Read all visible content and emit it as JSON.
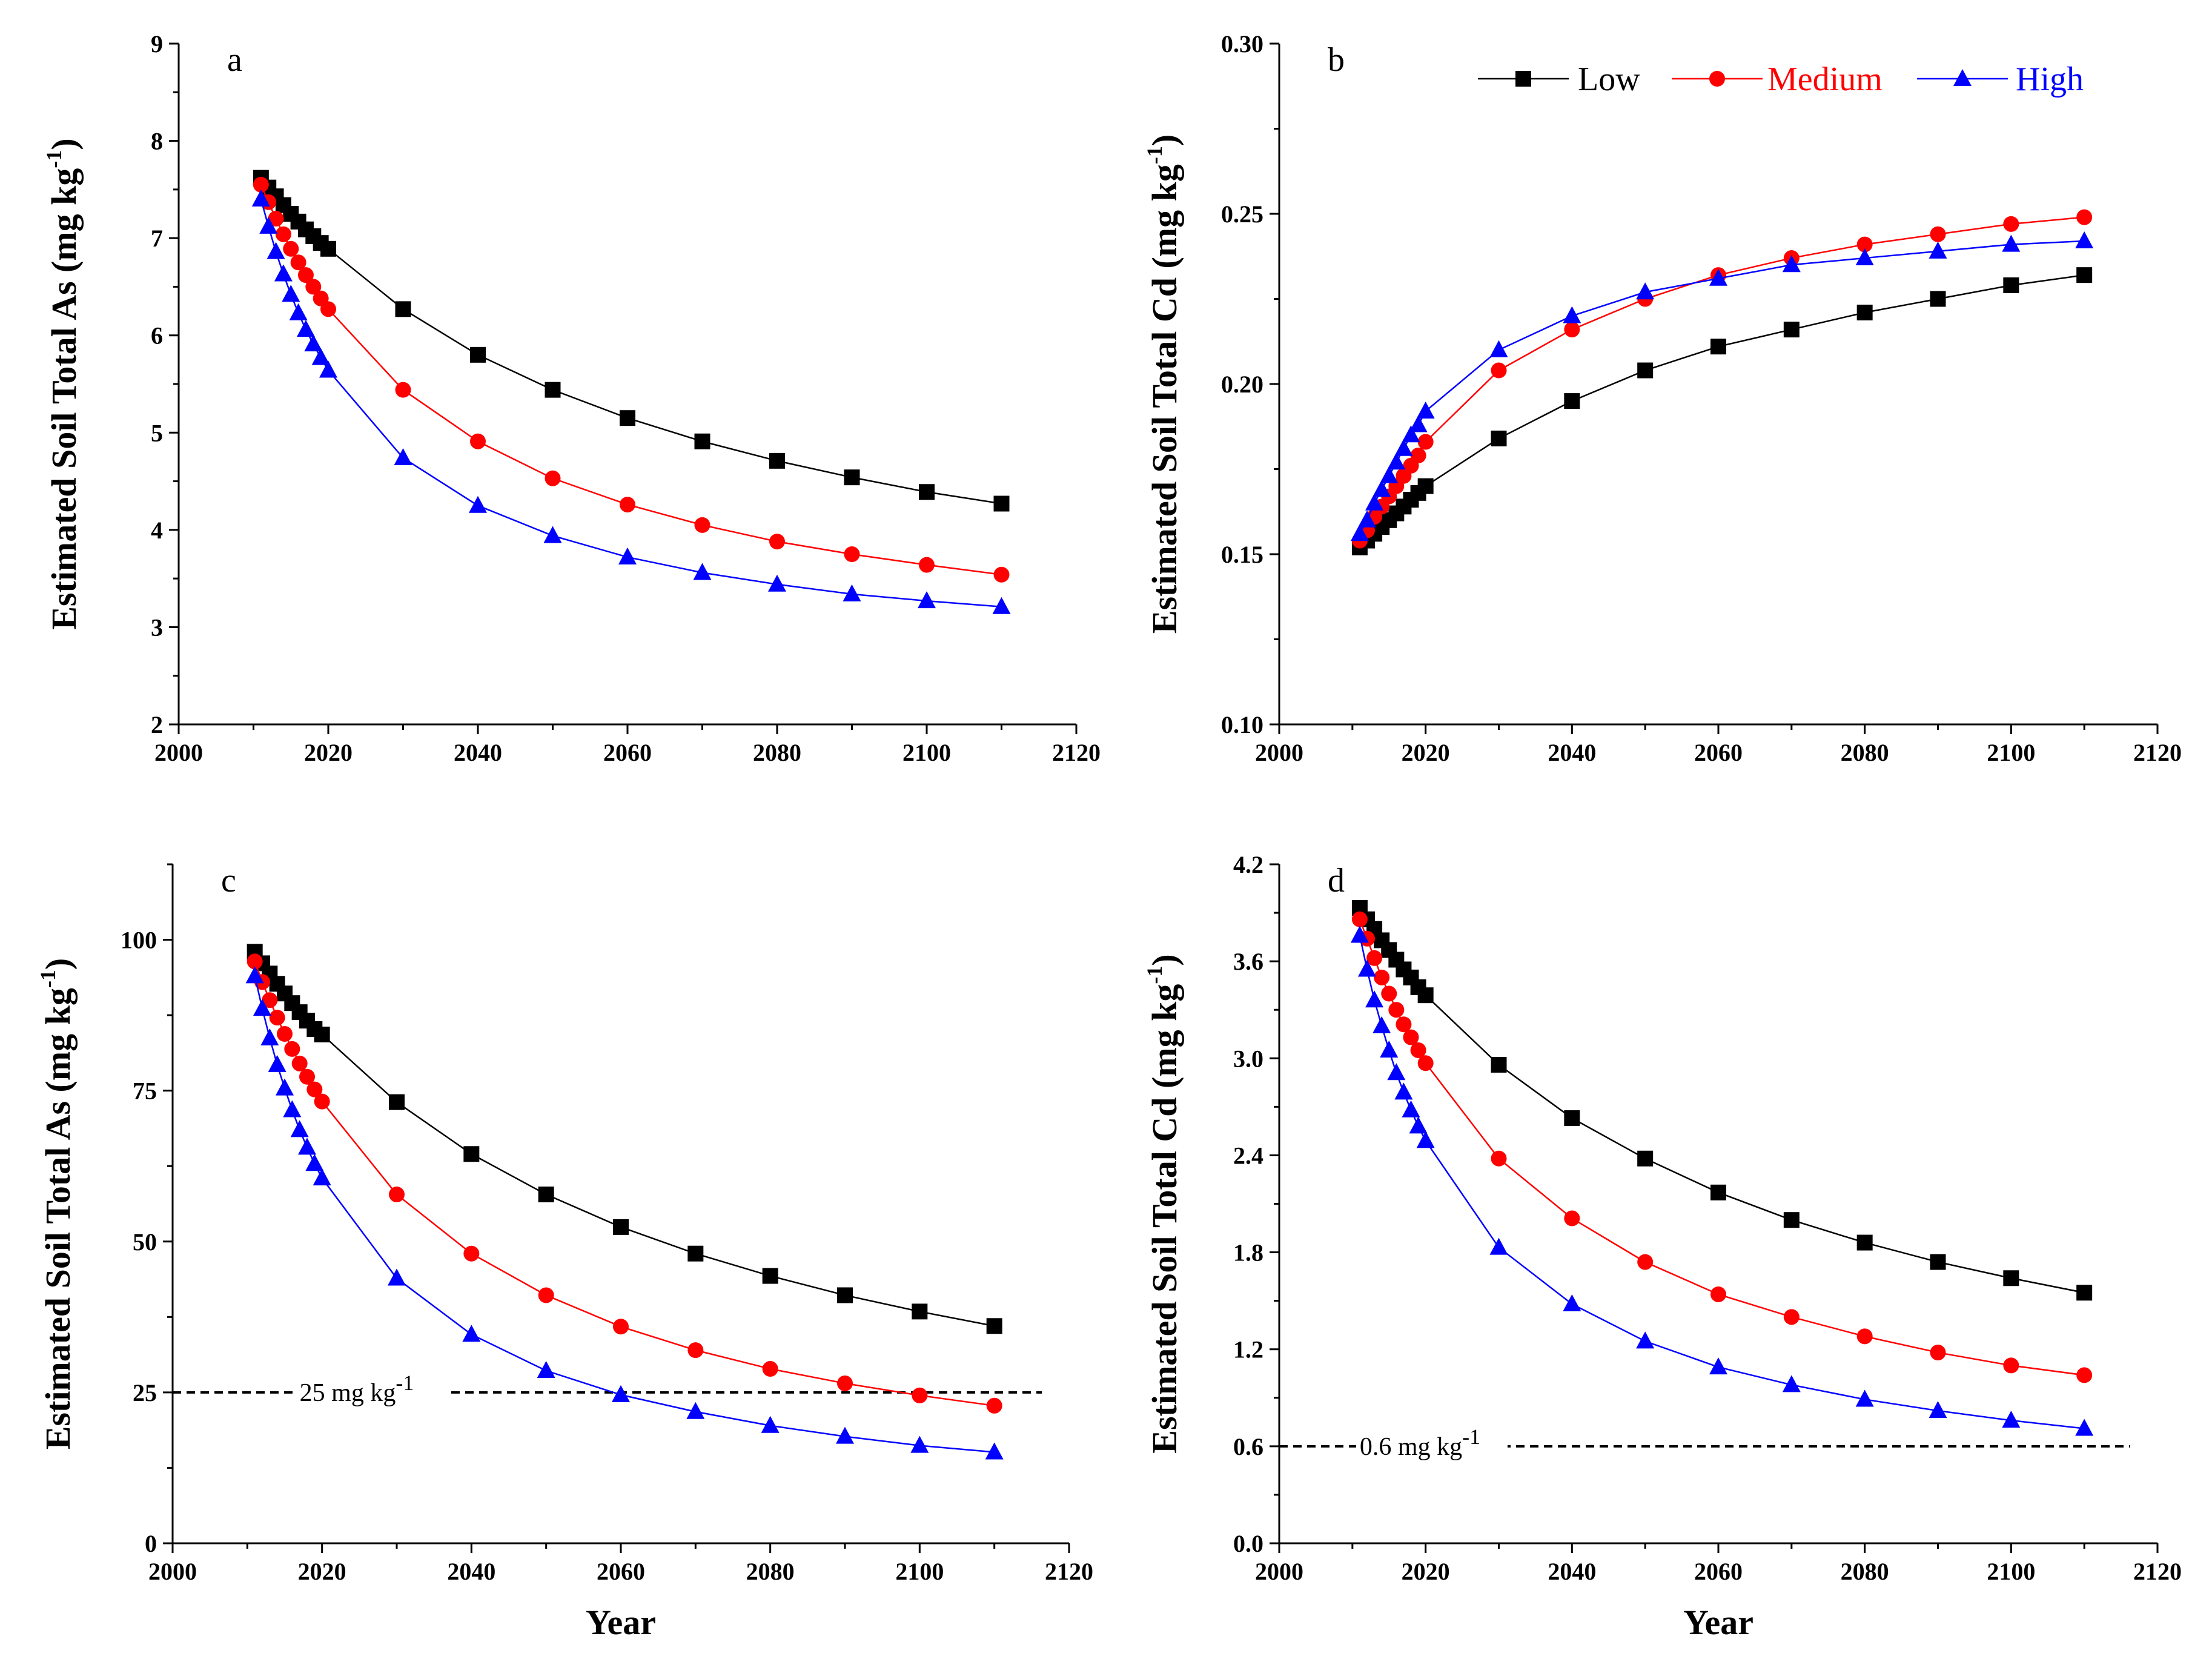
{
  "chart_data": [
    {
      "type": "line",
      "panel": "a",
      "xlabel": "",
      "ylabel": "Estimated Soil Total As (mg kg",
      "ylabel_sup": "-1",
      "ylabel_tail": ")",
      "xlim": [
        2000,
        2120
      ],
      "ylim": [
        2,
        9
      ],
      "xticks": [
        "2000",
        "2020",
        "2040",
        "2060",
        "2080",
        "2100",
        "2120"
      ],
      "yticks": [
        "2",
        "3",
        "4",
        "5",
        "6",
        "7",
        "8",
        "9"
      ],
      "x": [
        2011,
        2012,
        2013,
        2014,
        2015,
        2016,
        2017,
        2018,
        2019,
        2020,
        2030,
        2040,
        2050,
        2060,
        2070,
        2080,
        2090,
        2100,
        2110
      ],
      "series": [
        {
          "name": "Low",
          "color": "#000000",
          "marker": "square",
          "values": [
            7.62,
            7.52,
            7.43,
            7.34,
            7.25,
            7.17,
            7.09,
            7.02,
            6.95,
            6.89,
            6.27,
            5.8,
            5.44,
            5.15,
            4.91,
            4.71,
            4.54,
            4.39,
            4.27
          ]
        },
        {
          "name": "Medium",
          "color": "#ff0000",
          "marker": "circle",
          "values": [
            7.55,
            7.37,
            7.2,
            7.04,
            6.89,
            6.75,
            6.62,
            6.5,
            6.38,
            6.27,
            5.44,
            4.91,
            4.53,
            4.26,
            4.05,
            3.88,
            3.75,
            3.64,
            3.54
          ]
        },
        {
          "name": "High",
          "color": "#0000ff",
          "marker": "triangle",
          "values": [
            7.4,
            7.12,
            6.86,
            6.63,
            6.42,
            6.23,
            6.06,
            5.91,
            5.77,
            5.64,
            4.74,
            4.25,
            3.94,
            3.72,
            3.56,
            3.44,
            3.34,
            3.27,
            3.21
          ]
        }
      ]
    },
    {
      "type": "line",
      "panel": "b",
      "xlabel": "",
      "ylabel": "Estimated Soil Total Cd (mg kg",
      "ylabel_sup": "-1",
      "ylabel_tail": ")",
      "xlim": [
        2000,
        2120
      ],
      "ylim": [
        0.1,
        0.3
      ],
      "xticks": [
        "2000",
        "2020",
        "2040",
        "2060",
        "2080",
        "2100",
        "2120"
      ],
      "yticks": [
        "0.10",
        "0.15",
        "0.20",
        "0.25",
        "0.30"
      ],
      "x": [
        2011,
        2012,
        2013,
        2014,
        2015,
        2016,
        2017,
        2018,
        2019,
        2020,
        2030,
        2040,
        2050,
        2060,
        2070,
        2080,
        2090,
        2100,
        2110
      ],
      "legend": {
        "position": "top-right",
        "entries": [
          "Low",
          "Medium",
          "High"
        ]
      },
      "series": [
        {
          "name": "Low",
          "color": "#000000",
          "marker": "square",
          "values": [
            0.152,
            0.154,
            0.156,
            0.158,
            0.16,
            0.162,
            0.164,
            0.166,
            0.168,
            0.17,
            0.184,
            0.195,
            0.204,
            0.211,
            0.216,
            0.221,
            0.225,
            0.229,
            0.232
          ]
        },
        {
          "name": "Medium",
          "color": "#ff0000",
          "marker": "circle",
          "values": [
            0.154,
            0.157,
            0.161,
            0.164,
            0.167,
            0.17,
            0.173,
            0.176,
            0.179,
            0.183,
            0.204,
            0.216,
            0.225,
            0.232,
            0.237,
            0.241,
            0.244,
            0.247,
            0.249
          ]
        },
        {
          "name": "High",
          "color": "#0000ff",
          "marker": "triangle",
          "values": [
            0.156,
            0.16,
            0.165,
            0.169,
            0.173,
            0.177,
            0.181,
            0.185,
            0.188,
            0.192,
            0.21,
            0.22,
            0.227,
            0.231,
            0.235,
            0.237,
            0.239,
            0.241,
            0.242
          ]
        }
      ]
    },
    {
      "type": "line",
      "panel": "c",
      "xlabel": "Year",
      "ylabel": "Estimated Soil Total As (mg kg",
      "ylabel_sup": "-1",
      "ylabel_tail": ")",
      "xlim": [
        2000,
        2120
      ],
      "ylim": [
        0,
        112.5
      ],
      "xticks": [
        "2000",
        "2020",
        "2040",
        "2060",
        "2080",
        "2100",
        "2120"
      ],
      "yticks": [
        "0",
        "25",
        "50",
        "75",
        "100"
      ],
      "threshold": {
        "value": 25,
        "label": "25 mg kg",
        "sup": "-1",
        "label_x": 2017
      },
      "x": [
        2011,
        2012,
        2013,
        2014,
        2015,
        2016,
        2017,
        2018,
        2019,
        2020,
        2030,
        2040,
        2050,
        2060,
        2070,
        2080,
        2090,
        2100,
        2110
      ],
      "series": [
        {
          "name": "Low",
          "color": "#000000",
          "marker": "square",
          "values": [
            98.0,
            96.1,
            94.4,
            92.7,
            91.1,
            89.5,
            88.0,
            86.6,
            85.2,
            84.3,
            73.1,
            64.5,
            57.8,
            52.4,
            48.0,
            44.3,
            41.1,
            38.4,
            36.0
          ]
        },
        {
          "name": "Medium",
          "color": "#ff0000",
          "marker": "circle",
          "values": [
            96.4,
            93.0,
            90.0,
            87.1,
            84.4,
            81.9,
            79.5,
            77.3,
            75.2,
            73.2,
            57.8,
            48.0,
            41.1,
            35.9,
            32.0,
            28.9,
            26.5,
            24.5,
            22.8
          ]
        },
        {
          "name": "High",
          "color": "#0000ff",
          "marker": "triangle",
          "values": [
            94.0,
            88.6,
            83.7,
            79.3,
            75.4,
            71.8,
            68.5,
            65.6,
            62.9,
            60.5,
            43.9,
            34.6,
            28.6,
            24.6,
            21.8,
            19.5,
            17.7,
            16.2,
            15.1
          ]
        }
      ]
    },
    {
      "type": "line",
      "panel": "d",
      "xlabel": "Year",
      "ylabel": "Estimated Soil Total Cd (mg kg",
      "ylabel_sup": "-1",
      "ylabel_tail": ")",
      "xlim": [
        2000,
        2120
      ],
      "ylim": [
        0.0,
        4.2
      ],
      "xticks": [
        "2000",
        "2020",
        "2040",
        "2060",
        "2080",
        "2100",
        "2120"
      ],
      "yticks": [
        "0.0",
        "0.6",
        "1.2",
        "1.8",
        "2.4",
        "3.0",
        "3.6",
        "4.2"
      ],
      "threshold": {
        "value": 0.6,
        "label": "0.6 mg kg",
        "sup": "-1",
        "label_x": 2011
      },
      "x": [
        2011,
        2012,
        2013,
        2014,
        2015,
        2016,
        2017,
        2018,
        2019,
        2020,
        2030,
        2040,
        2050,
        2060,
        2070,
        2080,
        2090,
        2100,
        2110
      ],
      "series": [
        {
          "name": "Low",
          "color": "#000000",
          "marker": "square",
          "values": [
            3.93,
            3.86,
            3.8,
            3.73,
            3.67,
            3.61,
            3.55,
            3.5,
            3.44,
            3.39,
            2.96,
            2.63,
            2.38,
            2.17,
            2.0,
            1.86,
            1.74,
            1.64,
            1.55
          ]
        },
        {
          "name": "Medium",
          "color": "#ff0000",
          "marker": "circle",
          "values": [
            3.86,
            3.74,
            3.62,
            3.5,
            3.4,
            3.3,
            3.21,
            3.13,
            3.05,
            2.97,
            2.38,
            2.01,
            1.74,
            1.54,
            1.4,
            1.28,
            1.18,
            1.1,
            1.04
          ]
        },
        {
          "name": "High",
          "color": "#0000ff",
          "marker": "triangle",
          "values": [
            3.76,
            3.55,
            3.36,
            3.2,
            3.05,
            2.91,
            2.79,
            2.68,
            2.58,
            2.49,
            1.83,
            1.48,
            1.25,
            1.09,
            0.98,
            0.89,
            0.82,
            0.76,
            0.71
          ]
        }
      ]
    }
  ]
}
